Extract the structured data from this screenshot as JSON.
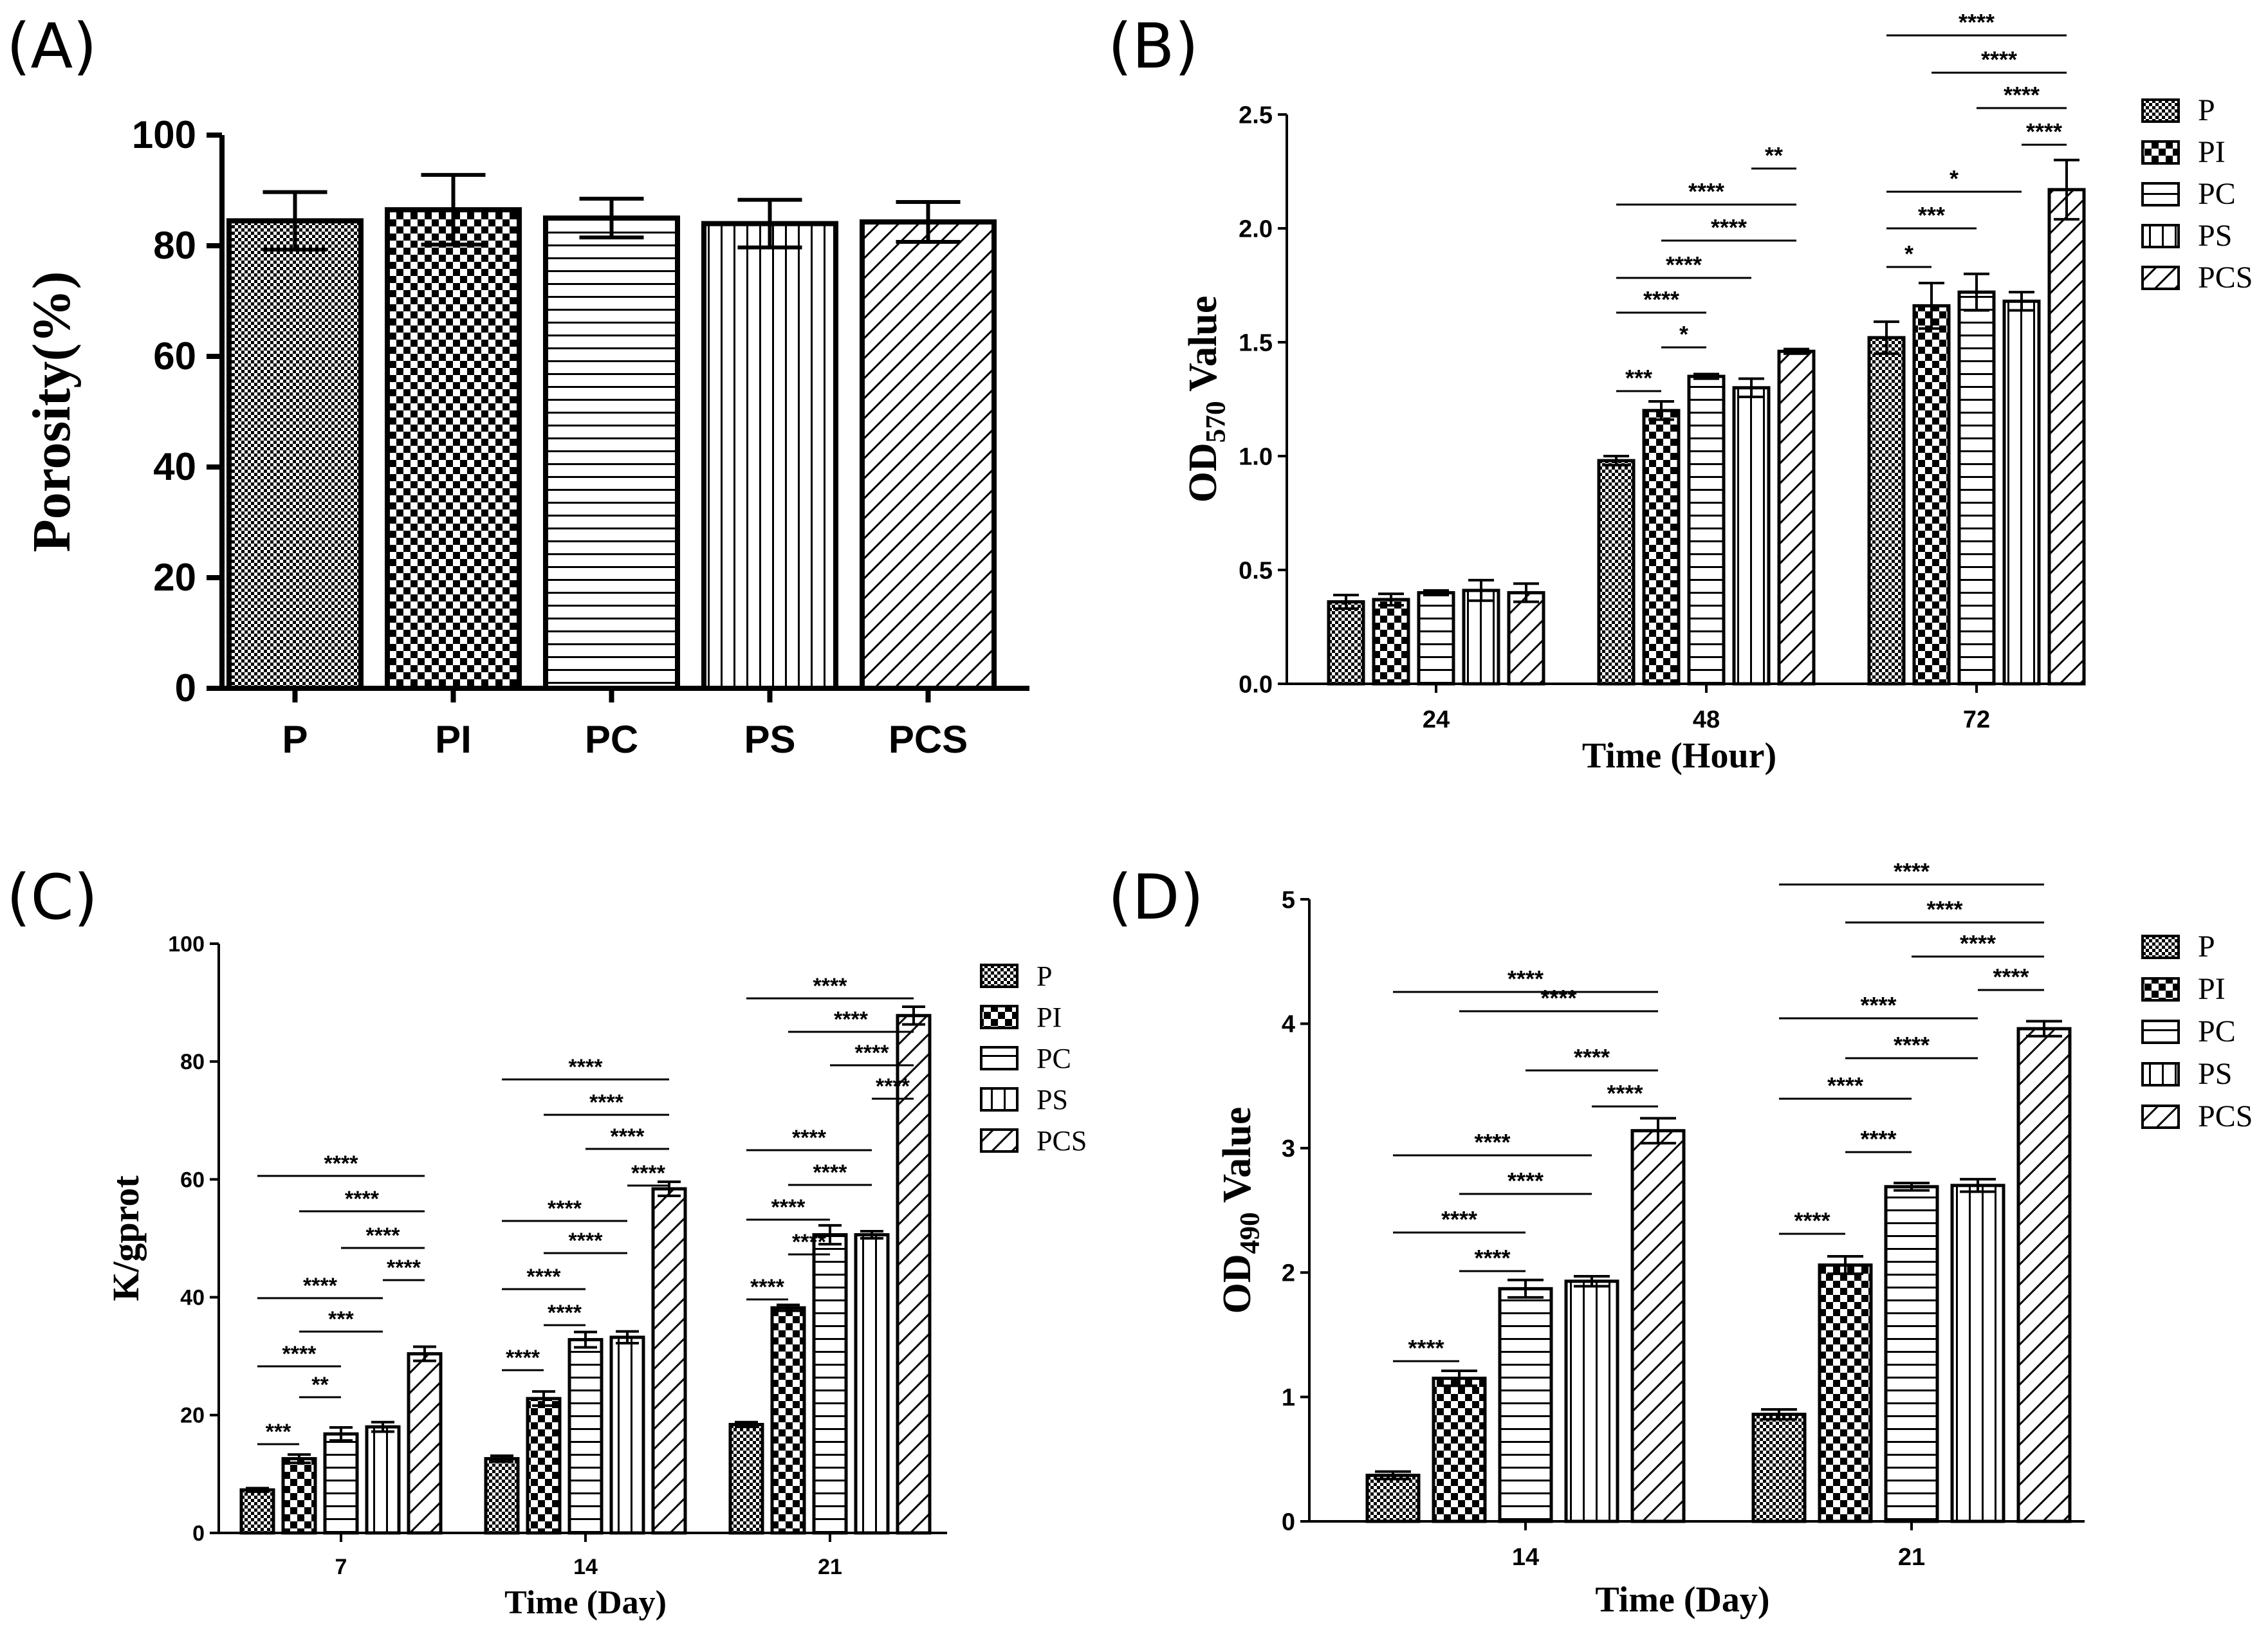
{
  "groups": [
    "P",
    "PI",
    "PC",
    "PS",
    "PCS"
  ],
  "chart_data": [
    {
      "panel": "(A)",
      "type": "bar",
      "categories": [
        "P",
        "PI",
        "PC",
        "PS",
        "PCS"
      ],
      "values": [
        84.5,
        86.5,
        85.0,
        84.0,
        84.3
      ],
      "errors": [
        5.2,
        6.3,
        3.5,
        4.3,
        3.6
      ],
      "ylabel": "Porosity(%)",
      "xlabel": "",
      "ylim": [
        0,
        100
      ],
      "yticks": [
        0,
        20,
        40,
        60,
        80,
        100
      ],
      "legend": []
    },
    {
      "panel": "(B)",
      "type": "bar",
      "categories": [
        "24",
        "48",
        "72"
      ],
      "xlabel": "Time (Hour)",
      "ylabel": "OD",
      "ylabel_sub": "570",
      "ylabel_suffix": " Value",
      "ylim": [
        0,
        2.5
      ],
      "yticks": [
        "0.0",
        "0.5",
        "1.0",
        "1.5",
        "2.0",
        "2.5"
      ],
      "legend": [
        "P",
        "PI",
        "PC",
        "PS",
        "PCS"
      ],
      "series": [
        {
          "name": "P",
          "values": [
            0.36,
            0.98,
            1.52
          ],
          "errors": [
            0.03,
            0.02,
            0.07
          ]
        },
        {
          "name": "PI",
          "values": [
            0.37,
            1.2,
            1.66
          ],
          "errors": [
            0.025,
            0.04,
            0.1
          ]
        },
        {
          "name": "PC",
          "values": [
            0.4,
            1.35,
            1.72
          ],
          "errors": [
            0.01,
            0.01,
            0.08
          ]
        },
        {
          "name": "PS",
          "values": [
            0.41,
            1.3,
            1.68
          ],
          "errors": [
            0.045,
            0.04,
            0.04
          ]
        },
        {
          "name": "PCS",
          "values": [
            0.4,
            1.46,
            2.17
          ],
          "errors": [
            0.04,
            0.01,
            0.13
          ]
        }
      ],
      "significance": [
        {
          "cat": 1,
          "from": 0,
          "to": 1,
          "label": "***"
        },
        {
          "cat": 1,
          "from": 1,
          "to": 2,
          "label": "*"
        },
        {
          "cat": 1,
          "from": 0,
          "to": 2,
          "label": "****"
        },
        {
          "cat": 1,
          "from": 0,
          "to": 3,
          "label": "****"
        },
        {
          "cat": 1,
          "from": 1,
          "to": 4,
          "label": "****"
        },
        {
          "cat": 1,
          "from": 0,
          "to": 4,
          "label": "****"
        },
        {
          "cat": 1,
          "from": 3,
          "to": 4,
          "label": "**"
        },
        {
          "cat": 2,
          "from": 0,
          "to": 1,
          "label": "*"
        },
        {
          "cat": 2,
          "from": 0,
          "to": 2,
          "label": "***"
        },
        {
          "cat": 2,
          "from": 0,
          "to": 3,
          "label": "*"
        },
        {
          "cat": 2,
          "from": 3,
          "to": 4,
          "label": "****"
        },
        {
          "cat": 2,
          "from": 2,
          "to": 4,
          "label": "****"
        },
        {
          "cat": 2,
          "from": 1,
          "to": 4,
          "label": "****"
        },
        {
          "cat": 2,
          "from": 0,
          "to": 4,
          "label": "****"
        }
      ]
    },
    {
      "panel": "(C)",
      "type": "bar",
      "categories": [
        "7",
        "14",
        "21"
      ],
      "xlabel": "Time (Day)",
      "ylabel": "K/gprot",
      "ylabel_sub": "",
      "ylabel_suffix": "",
      "ylim": [
        0,
        100
      ],
      "yticks": [
        "0",
        "20",
        "40",
        "60",
        "80",
        "100"
      ],
      "legend": [
        "P",
        "PI",
        "PC",
        "PS",
        "PCS"
      ],
      "series": [
        {
          "name": "P",
          "values": [
            7.3,
            12.6,
            18.4
          ],
          "errors": [
            0.3,
            0.5,
            0.4
          ]
        },
        {
          "name": "PI",
          "values": [
            12.6,
            22.8,
            38.2
          ],
          "errors": [
            0.7,
            1.2,
            0.5
          ]
        },
        {
          "name": "PC",
          "values": [
            16.8,
            32.8,
            50.6
          ],
          "errors": [
            1.1,
            1.3,
            1.6
          ]
        },
        {
          "name": "PS",
          "values": [
            18.0,
            33.2,
            50.6
          ],
          "errors": [
            0.8,
            1.0,
            0.6
          ]
        },
        {
          "name": "PCS",
          "values": [
            30.4,
            58.4,
            87.8
          ],
          "errors": [
            1.2,
            1.2,
            1.5
          ]
        }
      ],
      "significance": [
        {
          "cat": 0,
          "from": 0,
          "to": 1,
          "label": "***"
        },
        {
          "cat": 0,
          "from": 1,
          "to": 2,
          "label": "**"
        },
        {
          "cat": 0,
          "from": 0,
          "to": 2,
          "label": "****"
        },
        {
          "cat": 0,
          "from": 1,
          "to": 3,
          "label": "***"
        },
        {
          "cat": 0,
          "from": 0,
          "to": 3,
          "label": "****"
        },
        {
          "cat": 0,
          "from": 3,
          "to": 4,
          "label": "****"
        },
        {
          "cat": 0,
          "from": 2,
          "to": 4,
          "label": "****"
        },
        {
          "cat": 0,
          "from": 1,
          "to": 4,
          "label": "****"
        },
        {
          "cat": 0,
          "from": 0,
          "to": 4,
          "label": "****"
        },
        {
          "cat": 1,
          "from": 0,
          "to": 1,
          "label": "****"
        },
        {
          "cat": 1,
          "from": 1,
          "to": 2,
          "label": "****"
        },
        {
          "cat": 1,
          "from": 0,
          "to": 2,
          "label": "****"
        },
        {
          "cat": 1,
          "from": 1,
          "to": 3,
          "label": "****"
        },
        {
          "cat": 1,
          "from": 0,
          "to": 3,
          "label": "****"
        },
        {
          "cat": 1,
          "from": 3,
          "to": 4,
          "label": "****"
        },
        {
          "cat": 1,
          "from": 2,
          "to": 4,
          "label": "****"
        },
        {
          "cat": 1,
          "from": 1,
          "to": 4,
          "label": "****"
        },
        {
          "cat": 1,
          "from": 0,
          "to": 4,
          "label": "****"
        },
        {
          "cat": 2,
          "from": 0,
          "to": 1,
          "label": "****"
        },
        {
          "cat": 2,
          "from": 1,
          "to": 2,
          "label": "****"
        },
        {
          "cat": 2,
          "from": 0,
          "to": 2,
          "label": "****"
        },
        {
          "cat": 2,
          "from": 1,
          "to": 3,
          "label": "****"
        },
        {
          "cat": 2,
          "from": 0,
          "to": 3,
          "label": "****"
        },
        {
          "cat": 2,
          "from": 3,
          "to": 4,
          "label": "****"
        },
        {
          "cat": 2,
          "from": 2,
          "to": 4,
          "label": "****"
        },
        {
          "cat": 2,
          "from": 1,
          "to": 4,
          "label": "****"
        },
        {
          "cat": 2,
          "from": 0,
          "to": 4,
          "label": "****"
        }
      ]
    },
    {
      "panel": "(D)",
      "type": "bar",
      "categories": [
        "14",
        "21"
      ],
      "xlabel": "Time (Day)",
      "ylabel": "OD",
      "ylabel_sub": "490",
      "ylabel_suffix": " Value",
      "ylim": [
        0,
        5
      ],
      "yticks": [
        "0",
        "1",
        "2",
        "3",
        "4",
        "5"
      ],
      "legend": [
        "P",
        "PI",
        "PC",
        "PS",
        "PCS"
      ],
      "series": [
        {
          "name": "P",
          "values": [
            0.37,
            0.86
          ],
          "errors": [
            0.03,
            0.04
          ]
        },
        {
          "name": "PI",
          "values": [
            1.15,
            2.06
          ],
          "errors": [
            0.06,
            0.07
          ]
        },
        {
          "name": "PC",
          "values": [
            1.87,
            2.69
          ],
          "errors": [
            0.07,
            0.03
          ]
        },
        {
          "name": "PS",
          "values": [
            1.93,
            2.7
          ],
          "errors": [
            0.04,
            0.05
          ]
        },
        {
          "name": "PCS",
          "values": [
            3.14,
            3.96
          ],
          "errors": [
            0.1,
            0.06
          ]
        }
      ],
      "significance": [
        {
          "cat": 0,
          "from": 0,
          "to": 1,
          "label": "****"
        },
        {
          "cat": 0,
          "from": 1,
          "to": 2,
          "label": "****"
        },
        {
          "cat": 0,
          "from": 0,
          "to": 2,
          "label": "****"
        },
        {
          "cat": 0,
          "from": 1,
          "to": 3,
          "label": "****"
        },
        {
          "cat": 0,
          "from": 0,
          "to": 3,
          "label": "****"
        },
        {
          "cat": 0,
          "from": 3,
          "to": 4,
          "label": "****"
        },
        {
          "cat": 0,
          "from": 2,
          "to": 4,
          "label": "****"
        },
        {
          "cat": 0,
          "from": 1,
          "to": 4,
          "label": "****"
        },
        {
          "cat": 0,
          "from": 0,
          "to": 4,
          "label": "****"
        },
        {
          "cat": 1,
          "from": 0,
          "to": 1,
          "label": "****"
        },
        {
          "cat": 1,
          "from": 1,
          "to": 2,
          "label": "****"
        },
        {
          "cat": 1,
          "from": 0,
          "to": 2,
          "label": "****"
        },
        {
          "cat": 1,
          "from": 1,
          "to": 3,
          "label": "****"
        },
        {
          "cat": 1,
          "from": 0,
          "to": 3,
          "label": "****"
        },
        {
          "cat": 1,
          "from": 3,
          "to": 4,
          "label": "****"
        },
        {
          "cat": 1,
          "from": 2,
          "to": 4,
          "label": "****"
        },
        {
          "cat": 1,
          "from": 1,
          "to": 4,
          "label": "****"
        },
        {
          "cat": 1,
          "from": 0,
          "to": 4,
          "label": "****"
        }
      ]
    }
  ]
}
